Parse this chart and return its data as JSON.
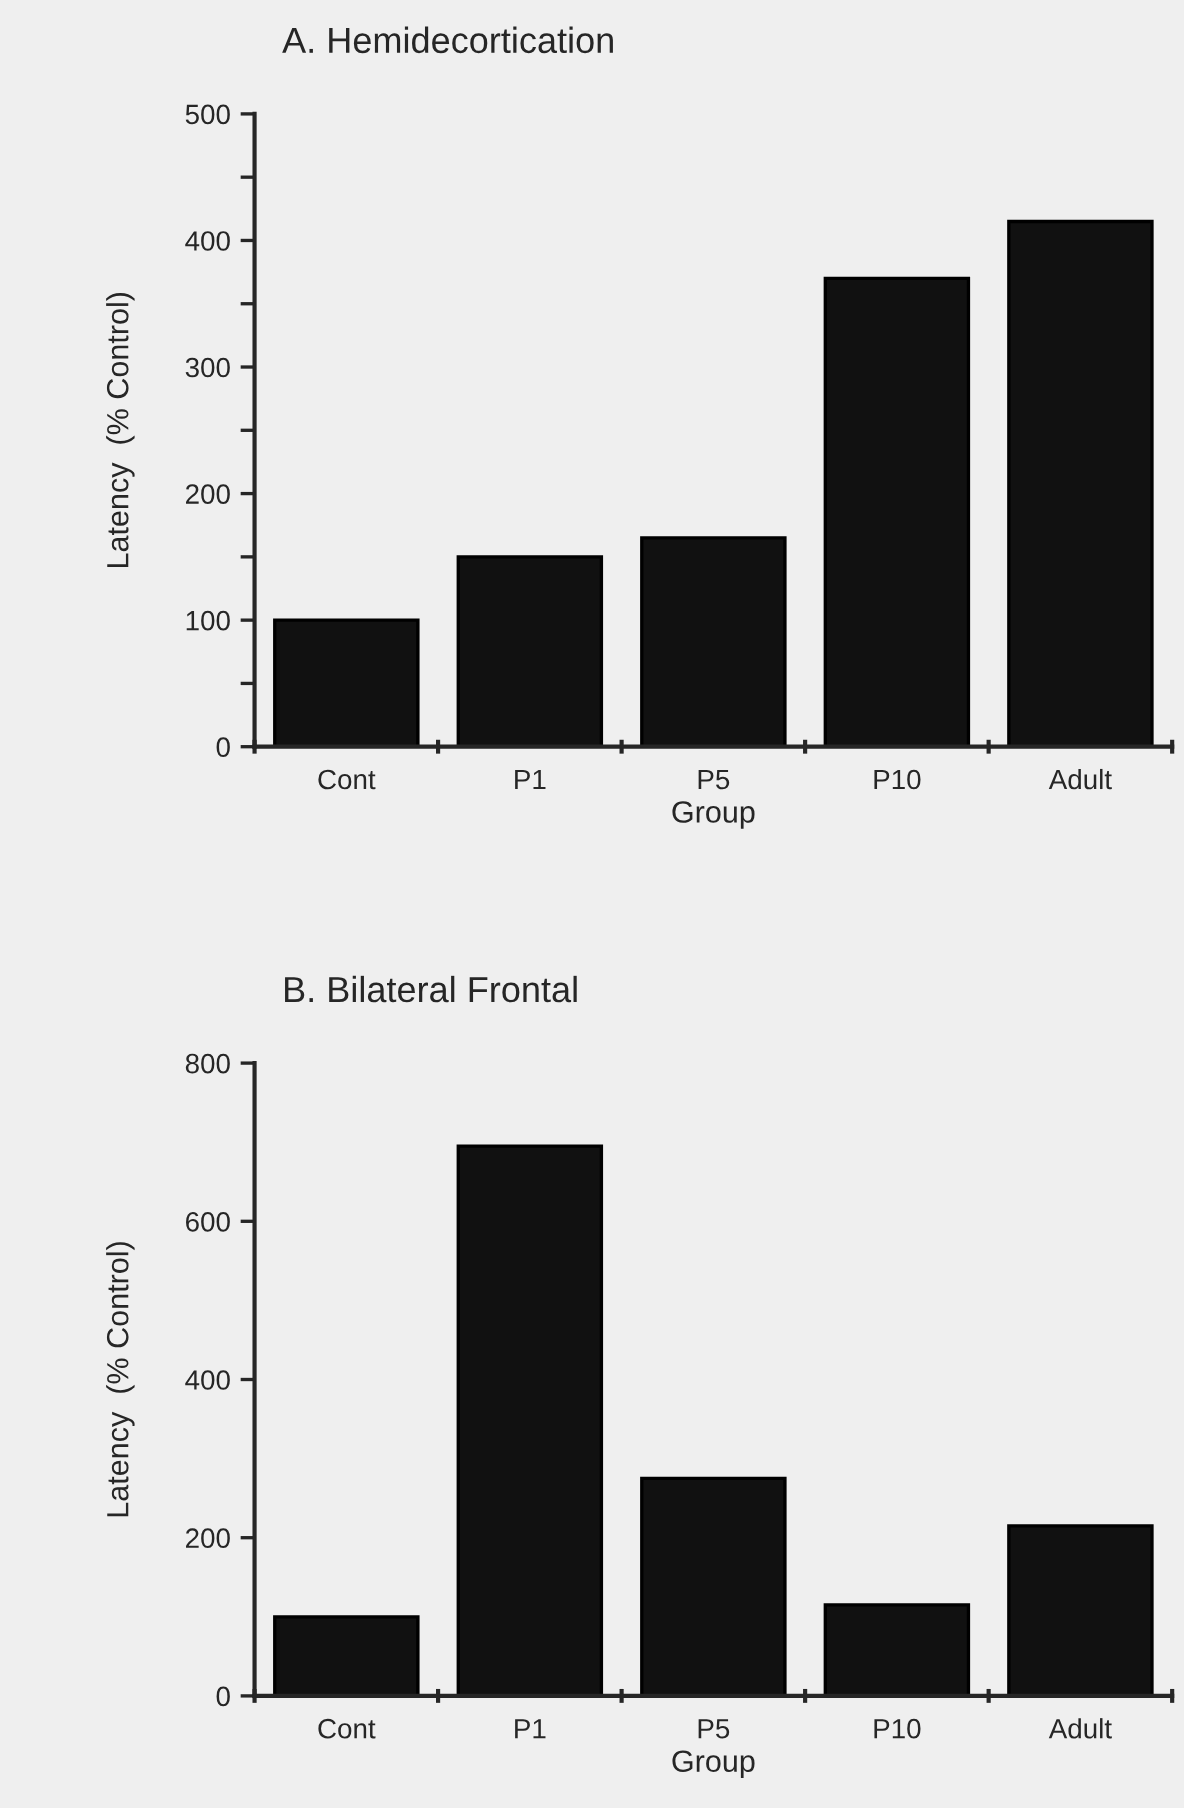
{
  "chart_data": [
    {
      "type": "bar",
      "title": "A. Hemidecortication",
      "xlabel": "Group",
      "ylabel": "Latency  (% Control)",
      "categories": [
        "Cont",
        "P1",
        "P5",
        "P10",
        "Adult"
      ],
      "values": [
        100,
        150,
        165,
        370,
        415
      ],
      "color": "#111111",
      "ylim": [
        0,
        500
      ],
      "yticks": [
        0,
        {
          "value": 50,
          "label": null
        },
        100,
        {
          "value": 150,
          "label": null
        },
        200,
        {
          "value": 250,
          "label": null
        },
        300,
        {
          "value": 350,
          "label": null
        },
        400,
        {
          "value": 450,
          "label": null
        },
        500
      ],
      "grid": false,
      "legend": false
    },
    {
      "type": "bar",
      "title": "B. Bilateral Frontal",
      "xlabel": "Group",
      "ylabel": "Latency  (% Control)",
      "categories": [
        "Cont",
        "P1",
        "P5",
        "P10",
        "Adult"
      ],
      "values": [
        100,
        695,
        275,
        115,
        215
      ],
      "color": "#111111",
      "ylim": [
        0,
        800
      ],
      "yticks": [
        0,
        200,
        400,
        600,
        800
      ],
      "grid": false,
      "legend": false
    }
  ]
}
